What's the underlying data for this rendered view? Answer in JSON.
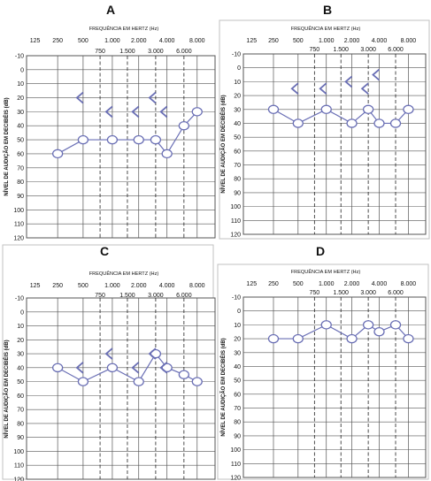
{
  "style": {
    "grid_color": "#555555",
    "series_color": "#6a6fb5",
    "frame_color": "#c0c0c0",
    "text_color": "#111111"
  },
  "chart_data": [
    {
      "panel_label": "A",
      "type": "line",
      "x_axis_title": "FREQUÊNCIA EM HERTZ (Hz)",
      "y_axis_title": "NÍVEL DE AUDIÇÃO EM DECIBÉIS (dB)",
      "x_ticks_top": [
        "125",
        "250",
        "500",
        "1.000",
        "2.000",
        "4.000",
        "8.000"
      ],
      "x_ticks_sub": [
        "750",
        "1.500",
        "3.000",
        "6.000"
      ],
      "y_ticks": [
        "-10",
        "0",
        "10",
        "20",
        "30",
        "40",
        "50",
        "60",
        "70",
        "80",
        "90",
        "100",
        "110",
        "120"
      ],
      "ylim": [
        -10,
        120
      ],
      "y_inverted": true,
      "air_conduction": [
        {
          "freq": "250",
          "db": 60
        },
        {
          "freq": "500",
          "db": 50
        },
        {
          "freq": "1.000",
          "db": 50
        },
        {
          "freq": "2.000",
          "db": 50
        },
        {
          "freq": "3.000",
          "db": 50
        },
        {
          "freq": "4.000",
          "db": 60
        },
        {
          "freq": "6.000",
          "db": 40
        },
        {
          "freq": "8.000",
          "db": 30
        }
      ],
      "bone_conduction": [
        {
          "freq": "500",
          "db": 20
        },
        {
          "freq": "1.000",
          "db": 30
        },
        {
          "freq": "2.000",
          "db": 30
        },
        {
          "freq": "3.000",
          "db": 20
        },
        {
          "freq": "4.000",
          "db": 30
        }
      ]
    },
    {
      "panel_label": "B",
      "type": "line",
      "x_axis_title": "FREQUÊNCIA EM HERTZ (Hz)",
      "y_axis_title": "NÍVEL DE AUDIÇÃO EM DECIBÉIS (dB)",
      "x_ticks_top": [
        "125",
        "250",
        "500",
        "1.000",
        "2.000",
        "4.000",
        "8.000"
      ],
      "x_ticks_sub": [
        "750",
        "1.500",
        "3.000",
        "6.000"
      ],
      "y_ticks": [
        "-10",
        "0",
        "10",
        "20",
        "30",
        "40",
        "50",
        "60",
        "70",
        "80",
        "90",
        "100",
        "110",
        "120"
      ],
      "ylim": [
        -10,
        120
      ],
      "y_inverted": true,
      "air_conduction": [
        {
          "freq": "250",
          "db": 30
        },
        {
          "freq": "500",
          "db": 40
        },
        {
          "freq": "1.000",
          "db": 30
        },
        {
          "freq": "2.000",
          "db": 40
        },
        {
          "freq": "3.000",
          "db": 30
        },
        {
          "freq": "4.000",
          "db": 40
        },
        {
          "freq": "6.000",
          "db": 40
        },
        {
          "freq": "8.000",
          "db": 30
        }
      ],
      "bone_conduction": [
        {
          "freq": "500",
          "db": 15
        },
        {
          "freq": "1.000",
          "db": 15
        },
        {
          "freq": "2.000",
          "db": 10
        },
        {
          "freq": "3.000",
          "db": 15
        },
        {
          "freq": "4.000",
          "db": 5
        }
      ]
    },
    {
      "panel_label": "C",
      "type": "line",
      "x_axis_title": "FREQUÊNCIA EM HERTZ (Hz)",
      "y_axis_title": "NÍVEL DE AUDIÇÃO EM DECIBÉIS (dB)",
      "x_ticks_top": [
        "125",
        "250",
        "500",
        "1.000",
        "2.000",
        "4.000",
        "8.000"
      ],
      "x_ticks_sub": [
        "750",
        "1.500",
        "3.000",
        "6.000"
      ],
      "y_ticks": [
        "-10",
        "0",
        "10",
        "20",
        "30",
        "40",
        "50",
        "60",
        "70",
        "80",
        "90",
        "100",
        "110",
        "120"
      ],
      "ylim": [
        -10,
        120
      ],
      "y_inverted": true,
      "air_conduction": [
        {
          "freq": "250",
          "db": 40
        },
        {
          "freq": "500",
          "db": 50
        },
        {
          "freq": "1.000",
          "db": 40
        },
        {
          "freq": "2.000",
          "db": 50
        },
        {
          "freq": "3.000",
          "db": 30
        },
        {
          "freq": "4.000",
          "db": 40
        },
        {
          "freq": "6.000",
          "db": 45
        },
        {
          "freq": "8.000",
          "db": 50
        }
      ],
      "bone_conduction": [
        {
          "freq": "500",
          "db": 40
        },
        {
          "freq": "1.000",
          "db": 30
        },
        {
          "freq": "2.000",
          "db": 40
        },
        {
          "freq": "3.000",
          "db": 30
        },
        {
          "freq": "4.000",
          "db": 40
        }
      ]
    },
    {
      "panel_label": "D",
      "type": "line",
      "x_axis_title": "FREQUÊNCIA EM HERTZ (Hz)",
      "y_axis_title": "NÍVEL DE AUDIÇÃO EM DECIBÉIS (dB)",
      "x_ticks_top": [
        "125",
        "250",
        "500",
        "1.000",
        "2.000",
        "4.000",
        "8.000"
      ],
      "x_ticks_sub": [
        "750",
        "1.500",
        "3.000",
        "6.000"
      ],
      "y_ticks": [
        "-10",
        "0",
        "10",
        "20",
        "30",
        "40",
        "50",
        "60",
        "70",
        "80",
        "90",
        "100",
        "110",
        "120"
      ],
      "ylim": [
        -10,
        120
      ],
      "y_inverted": true,
      "air_conduction": [
        {
          "freq": "250",
          "db": 20
        },
        {
          "freq": "500",
          "db": 20
        },
        {
          "freq": "1.000",
          "db": 10
        },
        {
          "freq": "2.000",
          "db": 20
        },
        {
          "freq": "3.000",
          "db": 10
        },
        {
          "freq": "4.000",
          "db": 15
        },
        {
          "freq": "6.000",
          "db": 10
        },
        {
          "freq": "8.000",
          "db": 20
        }
      ],
      "bone_conduction": []
    }
  ]
}
